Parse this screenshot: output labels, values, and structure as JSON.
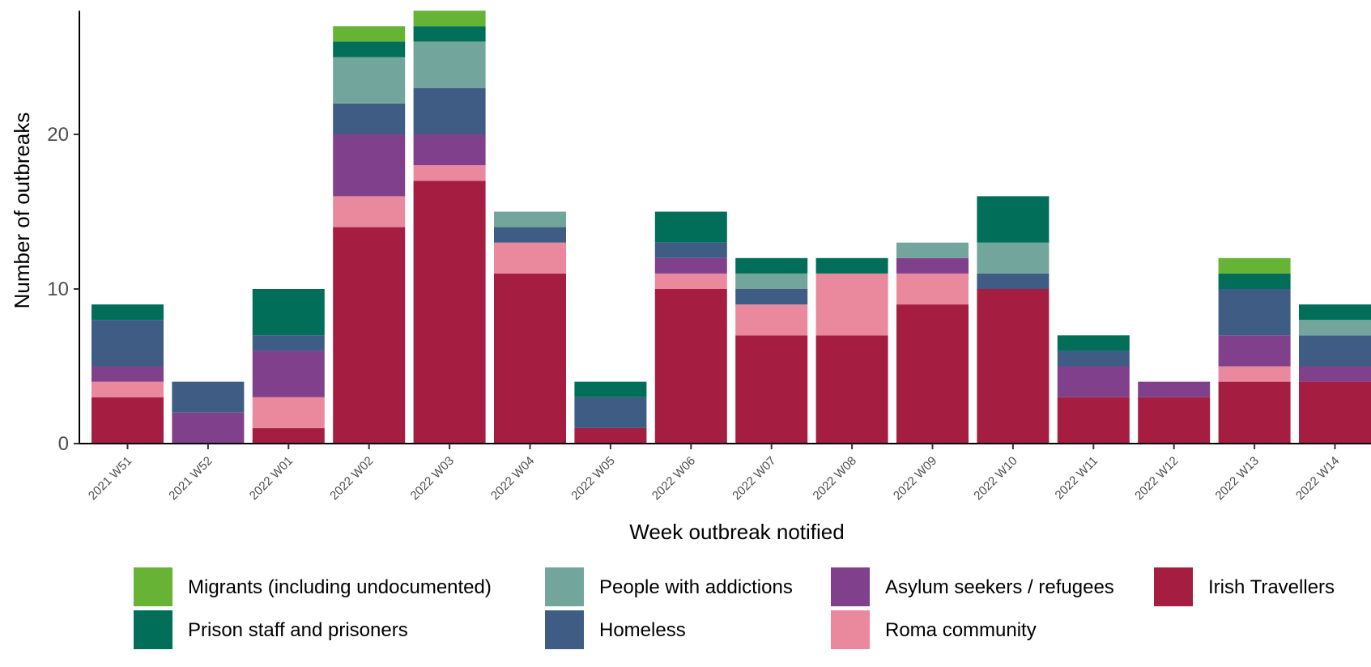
{
  "chart_data": {
    "type": "bar",
    "stacked": true,
    "title": "",
    "xlabel": "Week outbreak notified",
    "ylabel": "Number of outbreaks",
    "ylim": [
      0,
      28
    ],
    "yticks": [
      0,
      10,
      20
    ],
    "grid": false,
    "legend_position": "bottom",
    "categories": [
      "2021 W51",
      "2021 W52",
      "2022 W01",
      "2022 W02",
      "2022 W03",
      "2022 W04",
      "2022 W05",
      "2022 W06",
      "2022 W07",
      "2022 W08",
      "2022 W09",
      "2022 W10",
      "2022 W11",
      "2022 W12",
      "2022 W13",
      "2022 W14"
    ],
    "series": [
      {
        "name": "Irish Travellers",
        "color": "#a51e42",
        "values": [
          3,
          0,
          1,
          14,
          17,
          11,
          1,
          10,
          7,
          7,
          9,
          10,
          3,
          3,
          4,
          4
        ]
      },
      {
        "name": "Roma community",
        "color": "#ea889e",
        "values": [
          1,
          0,
          2,
          2,
          1,
          2,
          0,
          1,
          2,
          4,
          2,
          0,
          0,
          0,
          1,
          0
        ]
      },
      {
        "name": "Asylum seekers / refugees",
        "color": "#80408c",
        "values": [
          1,
          2,
          3,
          4,
          2,
          0,
          0,
          1,
          0,
          0,
          1,
          0,
          2,
          1,
          2,
          1
        ]
      },
      {
        "name": "Homeless",
        "color": "#3e5c84",
        "values": [
          3,
          2,
          1,
          2,
          3,
          1,
          2,
          1,
          1,
          0,
          0,
          1,
          1,
          0,
          3,
          2
        ]
      },
      {
        "name": "People with addictions",
        "color": "#72a59b",
        "values": [
          0,
          0,
          0,
          3,
          3,
          1,
          0,
          0,
          1,
          0,
          1,
          2,
          0,
          0,
          0,
          1
        ]
      },
      {
        "name": "Prison staff and prisoners",
        "color": "#006e58",
        "values": [
          1,
          0,
          3,
          1,
          1,
          0,
          1,
          2,
          1,
          1,
          0,
          3,
          1,
          0,
          1,
          1
        ]
      },
      {
        "name": "Migrants (including undocumented)",
        "color": "#66b336",
        "values": [
          0,
          0,
          0,
          1,
          1,
          0,
          0,
          0,
          0,
          0,
          0,
          0,
          0,
          0,
          1,
          0
        ]
      }
    ],
    "legend_order": [
      "Migrants (including undocumented)",
      "People with addictions",
      "Asylum seekers / refugees",
      "Irish Travellers",
      "Prison staff and prisoners",
      "Homeless",
      "Roma community"
    ]
  }
}
